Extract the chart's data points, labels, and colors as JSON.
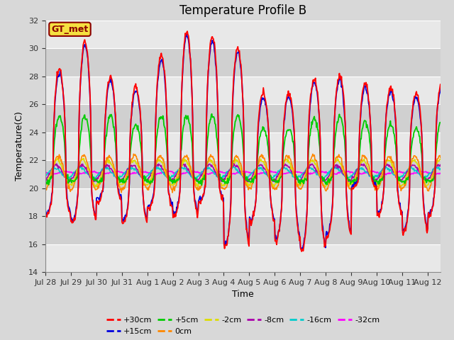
{
  "title": "Temperature Profile B",
  "xlabel": "Time",
  "ylabel": "Temperature(C)",
  "ylim": [
    14,
    32
  ],
  "yticks": [
    14,
    16,
    18,
    20,
    22,
    24,
    26,
    28,
    30,
    32
  ],
  "xtick_labels": [
    "Jul 28",
    "Jul 29",
    "Jul 30",
    "Jul 31",
    "Aug 1",
    "Aug 2",
    "Aug 3",
    "Aug 4",
    "Aug 5",
    "Aug 6",
    "Aug 7",
    "Aug 8",
    "Aug 9",
    "Aug 10",
    "Aug 11",
    "Aug 12"
  ],
  "annotation_text": "GT_met",
  "annotation_box_color": "#f5e040",
  "annotation_text_color": "#8B0000",
  "series_colors": {
    "+30cm": "#ff0000",
    "+15cm": "#0000dd",
    "+5cm": "#00cc00",
    "0cm": "#ff8800",
    "-2cm": "#dddd00",
    "-8cm": "#aa00aa",
    "-16cm": "#00cccc",
    "-32cm": "#ff00ff"
  },
  "series_order": [
    "+30cm",
    "+15cm",
    "+5cm",
    "0cm",
    "-2cm",
    "-8cm",
    "-16cm",
    "-32cm"
  ],
  "background_color": "#d8d8d8",
  "plot_bg_light": "#e8e8e8",
  "plot_bg_dark": "#d0d0d0",
  "grid_color": "#ffffff",
  "title_fontsize": 12,
  "axis_fontsize": 9,
  "tick_fontsize": 8,
  "legend_fontsize": 8
}
